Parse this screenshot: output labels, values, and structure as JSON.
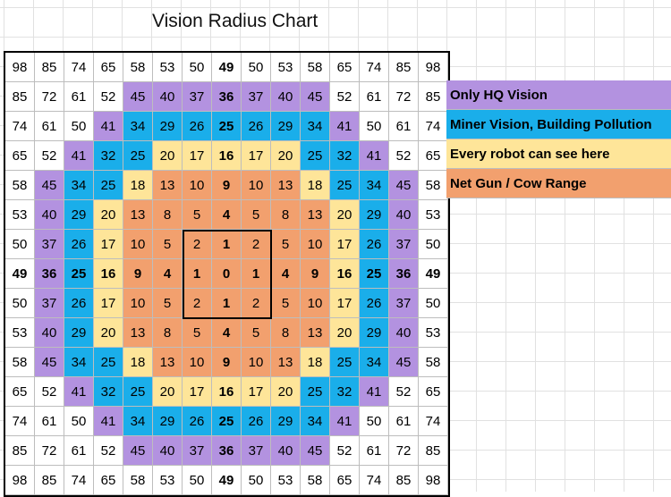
{
  "title": "Vision Radius Chart",
  "colors": {
    "purple": "#b392e0",
    "blue": "#1aaeea",
    "yellow": "#fee599",
    "orange": "#f2a06e",
    "white": "#ffffff"
  },
  "legend": [
    {
      "label": "Only HQ Vision",
      "color": "#b392e0"
    },
    {
      "label": "Miner Vision, Building Pollution",
      "color": "#1aaeea"
    },
    {
      "label": "Every robot can see here",
      "color": "#fee599"
    },
    {
      "label": "Net Gun / Cow Range",
      "color": "#f2a06e"
    }
  ],
  "rows": [
    [
      "98",
      "85",
      "74",
      "65",
      "58",
      "53",
      "50",
      "49",
      "50",
      "53",
      "58",
      "65",
      "74",
      "85",
      "98"
    ],
    [
      "85",
      "72",
      "61",
      "52",
      "45",
      "40",
      "37",
      "36",
      "37",
      "40",
      "45",
      "52",
      "61",
      "72",
      "85"
    ],
    [
      "74",
      "61",
      "50",
      "41",
      "34",
      "29",
      "26",
      "25",
      "26",
      "29",
      "34",
      "41",
      "50",
      "61",
      "74"
    ],
    [
      "65",
      "52",
      "41",
      "32",
      "25",
      "20",
      "17",
      "16",
      "17",
      "20",
      "25",
      "32",
      "41",
      "52",
      "65"
    ],
    [
      "58",
      "45",
      "34",
      "25",
      "18",
      "13",
      "10",
      "9",
      "10",
      "13",
      "18",
      "25",
      "34",
      "45",
      "58"
    ],
    [
      "53",
      "40",
      "29",
      "20",
      "13",
      "8",
      "5",
      "4",
      "5",
      "8",
      "13",
      "20",
      "29",
      "40",
      "53"
    ],
    [
      "50",
      "37",
      "26",
      "17",
      "10",
      "5",
      "2",
      "1",
      "2",
      "5",
      "10",
      "17",
      "26",
      "37",
      "50"
    ],
    [
      "49",
      "36",
      "25",
      "16",
      "9",
      "4",
      "1",
      "0",
      "1",
      "4",
      "9",
      "16",
      "25",
      "36",
      "49"
    ],
    [
      "50",
      "37",
      "26",
      "17",
      "10",
      "5",
      "2",
      "1",
      "2",
      "5",
      "10",
      "17",
      "26",
      "37",
      "50"
    ],
    [
      "53",
      "40",
      "29",
      "20",
      "13",
      "8",
      "5",
      "4",
      "5",
      "8",
      "13",
      "20",
      "29",
      "40",
      "53"
    ],
    [
      "58",
      "45",
      "34",
      "25",
      "18",
      "13",
      "10",
      "9",
      "10",
      "13",
      "18",
      "25",
      "34",
      "45",
      "58"
    ],
    [
      "65",
      "52",
      "41",
      "32",
      "25",
      "20",
      "17",
      "16",
      "17",
      "20",
      "25",
      "32",
      "41",
      "52",
      "65"
    ],
    [
      "74",
      "61",
      "50",
      "41",
      "34",
      "29",
      "26",
      "25",
      "26",
      "29",
      "34",
      "41",
      "50",
      "61",
      "74"
    ],
    [
      "85",
      "72",
      "61",
      "52",
      "45",
      "40",
      "37",
      "36",
      "37",
      "40",
      "45",
      "52",
      "61",
      "72",
      "85"
    ],
    [
      "98",
      "85",
      "74",
      "65",
      "58",
      "53",
      "50",
      "49",
      "50",
      "53",
      "58",
      "65",
      "74",
      "85",
      "98"
    ]
  ],
  "color_map": [
    [
      "white",
      "white",
      "white",
      "white",
      "white",
      "white",
      "white",
      "white",
      "white",
      "white",
      "white",
      "white",
      "white",
      "white",
      "white"
    ],
    [
      "white",
      "white",
      "white",
      "white",
      "purple",
      "purple",
      "purple",
      "purple",
      "purple",
      "purple",
      "purple",
      "white",
      "white",
      "white",
      "white"
    ],
    [
      "white",
      "white",
      "white",
      "purple",
      "blue",
      "blue",
      "blue",
      "blue",
      "blue",
      "blue",
      "blue",
      "purple",
      "white",
      "white",
      "white"
    ],
    [
      "white",
      "white",
      "purple",
      "blue",
      "blue",
      "yellow",
      "yellow",
      "yellow",
      "yellow",
      "yellow",
      "blue",
      "blue",
      "purple",
      "white",
      "white"
    ],
    [
      "white",
      "purple",
      "blue",
      "blue",
      "yellow",
      "orange",
      "orange",
      "orange",
      "orange",
      "orange",
      "yellow",
      "blue",
      "blue",
      "purple",
      "white"
    ],
    [
      "white",
      "purple",
      "blue",
      "yellow",
      "orange",
      "orange",
      "orange",
      "orange",
      "orange",
      "orange",
      "orange",
      "yellow",
      "blue",
      "purple",
      "white"
    ],
    [
      "white",
      "purple",
      "blue",
      "yellow",
      "orange",
      "orange",
      "orange",
      "orange",
      "orange",
      "orange",
      "orange",
      "yellow",
      "blue",
      "purple",
      "white"
    ],
    [
      "white",
      "purple",
      "blue",
      "yellow",
      "orange",
      "orange",
      "orange",
      "orange",
      "orange",
      "orange",
      "orange",
      "yellow",
      "blue",
      "purple",
      "white"
    ],
    [
      "white",
      "purple",
      "blue",
      "yellow",
      "orange",
      "orange",
      "orange",
      "orange",
      "orange",
      "orange",
      "orange",
      "yellow",
      "blue",
      "purple",
      "white"
    ],
    [
      "white",
      "purple",
      "blue",
      "yellow",
      "orange",
      "orange",
      "orange",
      "orange",
      "orange",
      "orange",
      "orange",
      "yellow",
      "blue",
      "purple",
      "white"
    ],
    [
      "white",
      "purple",
      "blue",
      "blue",
      "yellow",
      "orange",
      "orange",
      "orange",
      "orange",
      "orange",
      "yellow",
      "blue",
      "blue",
      "purple",
      "white"
    ],
    [
      "white",
      "white",
      "purple",
      "blue",
      "blue",
      "yellow",
      "yellow",
      "yellow",
      "yellow",
      "yellow",
      "blue",
      "blue",
      "purple",
      "white",
      "white"
    ],
    [
      "white",
      "white",
      "white",
      "purple",
      "blue",
      "blue",
      "blue",
      "blue",
      "blue",
      "blue",
      "blue",
      "purple",
      "white",
      "white",
      "white"
    ],
    [
      "white",
      "white",
      "white",
      "white",
      "purple",
      "purple",
      "purple",
      "purple",
      "purple",
      "purple",
      "purple",
      "white",
      "white",
      "white",
      "white"
    ],
    [
      "white",
      "white",
      "white",
      "white",
      "white",
      "white",
      "white",
      "white",
      "white",
      "white",
      "white",
      "white",
      "white",
      "white",
      "white"
    ]
  ],
  "bold_row_index": 7,
  "bold_col_index": 7
}
